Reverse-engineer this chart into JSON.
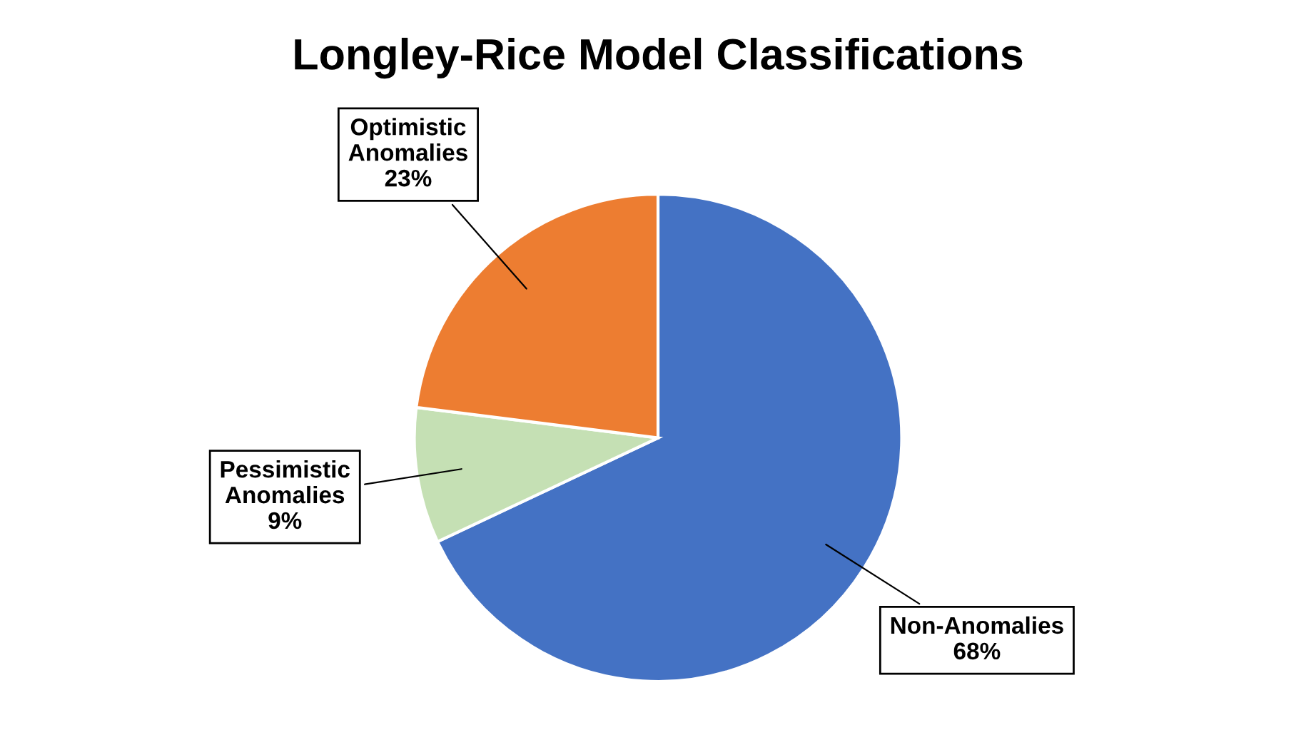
{
  "chart_data": {
    "type": "pie",
    "title": "Longley-Rice Model Classifications",
    "categories": [
      "Non-Anomalies",
      "Pessimistic Anomalies",
      "Optimistic Anomalies"
    ],
    "values": [
      68,
      9,
      23
    ],
    "colors": [
      "#4472c4",
      "#c5e0b4",
      "#ed7d31"
    ],
    "value_labels": [
      "68%",
      "9%",
      "23%"
    ],
    "legend": false
  }
}
